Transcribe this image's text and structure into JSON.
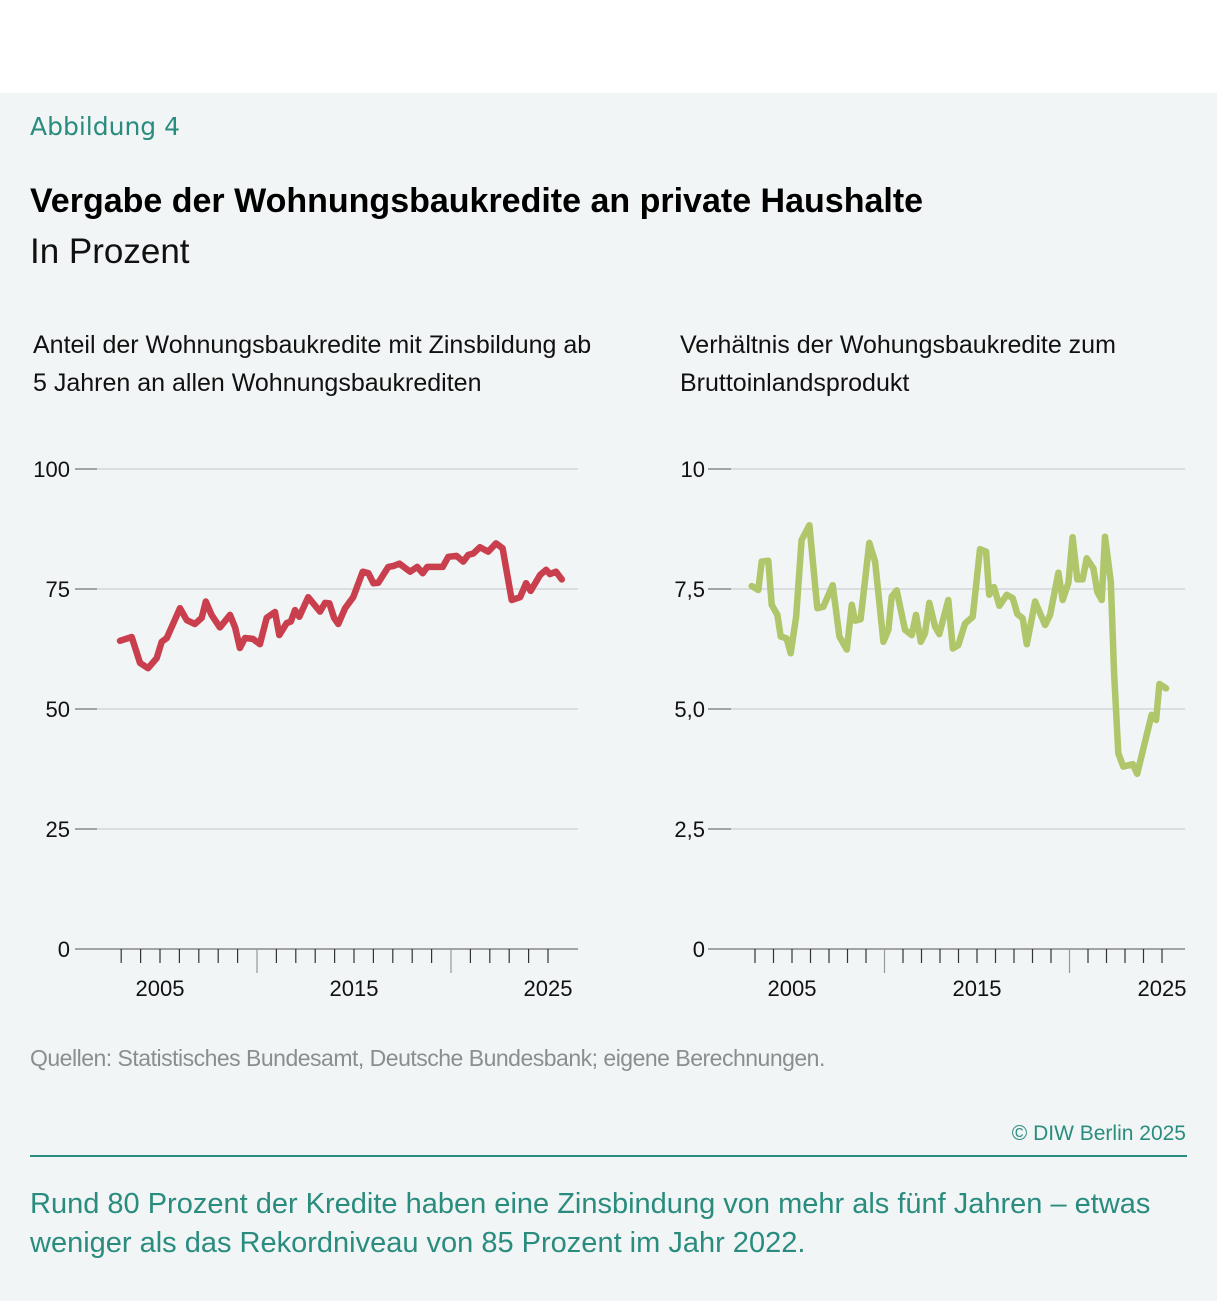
{
  "figure_label": "Abbildung 4",
  "title": "Vergabe der Wohnungsbaukredite an private Haushalte",
  "subtitle": "In Prozent",
  "source": "Quellen: Statistisches Bundesamt, Deutsche Bundesbank; eigene Berechnungen.",
  "copyright": "© DIW Berlin 2025",
  "caption": "Rund 80 Prozent der Kredite haben eine Zinsbindung von mehr als fünf Jahren – etwas weniger als das Rekordniveau von 85 Prozent im Jahr 2022.",
  "chart_data": [
    {
      "type": "line",
      "title": "Anteil der Wohnungsbaukredite mit Zinsbildung ab 5 Jahren an allen Wohnungsbaukrediten",
      "color": "#c93f4d",
      "ylim": [
        0,
        100
      ],
      "yticks": [
        0,
        25,
        50,
        75,
        100
      ],
      "ytick_labels": [
        "0",
        "25",
        "50",
        "75",
        "100"
      ],
      "xlim": [
        2001,
        2026.5
      ],
      "xticks_labeled": [
        2005,
        2015,
        2025
      ],
      "xtick_labels": [
        "2005",
        "2015",
        "2025"
      ],
      "grid": true,
      "x": [
        2002.94,
        2003.54,
        2003.97,
        2004.38,
        2004.83,
        2005.09,
        2005.35,
        2006.03,
        2006.38,
        2006.8,
        2007.15,
        2007.36,
        2007.66,
        2008.09,
        2008.61,
        2008.87,
        2009.12,
        2009.38,
        2009.79,
        2010.15,
        2010.5,
        2010.93,
        2011.15,
        2011.53,
        2011.74,
        2011.96,
        2012.18,
        2012.64,
        2013.25,
        2013.51,
        2013.73,
        2013.97,
        2014.19,
        2014.54,
        2014.96,
        2015.45,
        2015.74,
        2016.0,
        2016.25,
        2016.77,
        2017.03,
        2017.34,
        2017.89,
        2018.26,
        2018.54,
        2018.78,
        2019.57,
        2019.86,
        2020.29,
        2020.63,
        2020.89,
        2021.15,
        2021.49,
        2021.92,
        2022.32,
        2022.66,
        2023.13,
        2023.56,
        2023.87,
        2024.11,
        2024.59,
        2024.9,
        2025.1,
        2025.41,
        2025.71
      ],
      "y": [
        64.2,
        65.0,
        59.6,
        58.5,
        60.6,
        64.0,
        64.8,
        71.0,
        68.5,
        67.7,
        69.0,
        72.4,
        69.6,
        67.0,
        69.6,
        67.0,
        62.7,
        64.8,
        64.6,
        63.5,
        69.0,
        70.2,
        65.4,
        67.9,
        68.2,
        70.6,
        69.2,
        73.3,
        70.3,
        72.1,
        72.0,
        69.0,
        67.7,
        71.0,
        73.3,
        78.6,
        78.3,
        76.2,
        76.3,
        79.6,
        79.8,
        80.3,
        78.6,
        79.6,
        78.3,
        79.6,
        79.6,
        81.7,
        81.9,
        80.7,
        82.1,
        82.4,
        83.7,
        82.8,
        84.5,
        83.5,
        72.7,
        73.3,
        76.2,
        74.6,
        77.9,
        79.0,
        78.1,
        78.6,
        77.0
      ]
    },
    {
      "type": "line",
      "title": "Verhältnis der Wohungsbaukredite zum Bruttoinlandsprodukt",
      "color": "#afc66a",
      "ylim": [
        0,
        10
      ],
      "yticks": [
        0,
        2.5,
        5,
        7.5,
        10
      ],
      "ytick_labels": [
        "0",
        "2,5",
        "5,0",
        "7,5",
        "10"
      ],
      "xlim": [
        2000.4,
        2026.3
      ],
      "xticks_labeled": [
        2005,
        2015,
        2025
      ],
      "xtick_labels": [
        "2005",
        "2015",
        "2025"
      ],
      "grid": true,
      "x": [
        2002.82,
        2003.18,
        2003.36,
        2003.72,
        2003.9,
        2004.21,
        2004.39,
        2004.71,
        2004.93,
        2005.22,
        2005.52,
        2005.94,
        2006.37,
        2006.69,
        2007.2,
        2007.56,
        2007.96,
        2008.23,
        2008.41,
        2008.71,
        2009.18,
        2009.49,
        2009.94,
        2010.21,
        2010.39,
        2010.66,
        2011.11,
        2011.47,
        2011.7,
        2011.96,
        2012.19,
        2012.42,
        2012.73,
        2012.96,
        2013.45,
        2013.69,
        2013.99,
        2014.35,
        2014.77,
        2015.16,
        2015.49,
        2015.66,
        2015.92,
        2016.21,
        2016.61,
        2016.93,
        2017.18,
        2017.47,
        2017.69,
        2018.14,
        2018.68,
        2018.95,
        2019.4,
        2019.63,
        2019.94,
        2020.17,
        2020.42,
        2020.71,
        2020.93,
        2021.29,
        2021.5,
        2021.74,
        2021.92,
        2022.23,
        2022.41,
        2022.64,
        2022.91,
        2023.42,
        2023.66,
        2024.44,
        2024.68,
        2024.86,
        2025.22
      ],
      "y": [
        7.56,
        7.48,
        8.07,
        8.09,
        7.17,
        6.96,
        6.51,
        6.47,
        6.16,
        6.92,
        8.52,
        8.83,
        7.1,
        7.13,
        7.58,
        6.51,
        6.24,
        7.17,
        6.84,
        6.87,
        8.46,
        8.07,
        6.4,
        6.65,
        7.34,
        7.47,
        6.65,
        6.54,
        6.96,
        6.4,
        6.58,
        7.21,
        6.72,
        6.56,
        7.27,
        6.26,
        6.33,
        6.78,
        6.92,
        8.33,
        8.28,
        7.38,
        7.54,
        7.15,
        7.38,
        7.31,
        6.98,
        6.89,
        6.35,
        7.24,
        6.75,
        6.96,
        7.84,
        7.27,
        7.63,
        8.58,
        7.7,
        7.7,
        8.14,
        7.93,
        7.44,
        7.27,
        8.59,
        7.65,
        5.74,
        4.08,
        3.8,
        3.85,
        3.65,
        4.88,
        4.77,
        5.52,
        5.43
      ]
    }
  ]
}
